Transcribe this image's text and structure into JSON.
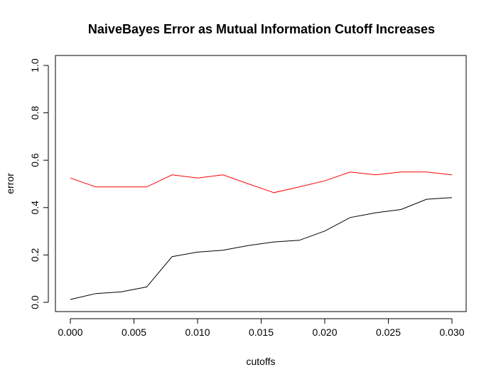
{
  "chart_data": {
    "type": "line",
    "title": "NaiveBayes Error as Mutual Information Cutoff Increases",
    "xlabel": "cutoffs",
    "ylabel": "error",
    "xlim": [
      0.0,
      0.03
    ],
    "ylim": [
      0.0,
      1.0
    ],
    "x_ticks": [
      "0.000",
      "0.005",
      "0.010",
      "0.015",
      "0.020",
      "0.025",
      "0.030"
    ],
    "y_ticks": [
      "0.0",
      "0.2",
      "0.4",
      "0.6",
      "0.8",
      "1.0"
    ],
    "grid": false,
    "legend": "none",
    "x": [
      0.0,
      0.002,
      0.004,
      0.006,
      0.008,
      0.01,
      0.012,
      0.014,
      0.016,
      0.018,
      0.02,
      0.022,
      0.024,
      0.026,
      0.028,
      0.03
    ],
    "series": [
      {
        "color": "#ff0000",
        "values": [
          0.525,
          0.487,
          0.487,
          0.487,
          0.538,
          0.525,
          0.538,
          0.5,
          0.463,
          0.487,
          0.513,
          0.55,
          0.538,
          0.55,
          0.55,
          0.538
        ]
      },
      {
        "color": "#000000",
        "values": [
          0.012,
          0.037,
          0.044,
          0.065,
          0.193,
          0.212,
          0.22,
          0.24,
          0.255,
          0.262,
          0.301,
          0.358,
          0.378,
          0.392,
          0.435,
          0.442
        ]
      }
    ]
  }
}
